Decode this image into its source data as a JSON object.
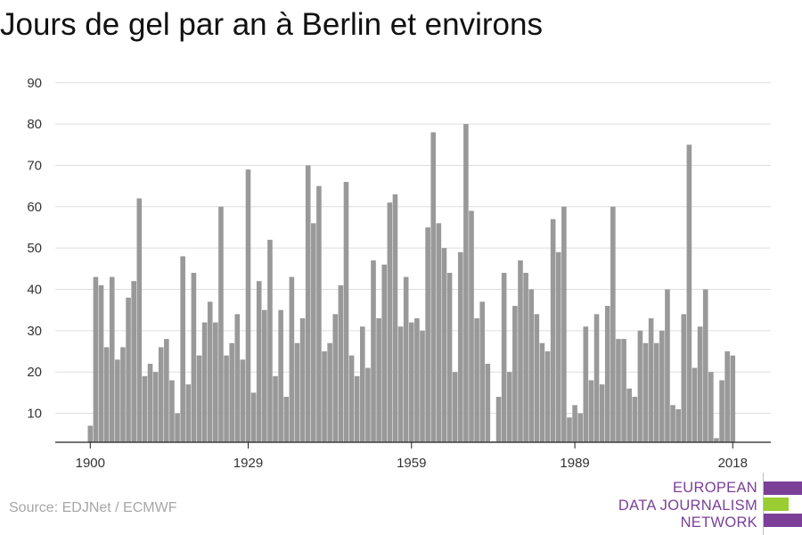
{
  "title": "Jours de gel par an à Berlin et environs",
  "source": "Source: EDJNet / ECMWF",
  "logo": {
    "lines": [
      "EUROPEAN",
      "DATA JOURNALISM",
      "NETWORK"
    ],
    "colors": {
      "purple": "#7b3f98",
      "green": "#9acd32"
    }
  },
  "chart_data": {
    "type": "bar",
    "title": "Jours de gel par an à Berlin et environs",
    "xlabel": "",
    "ylabel": "",
    "ylim": [
      3,
      90
    ],
    "yticks": [
      10,
      20,
      30,
      40,
      50,
      60,
      70,
      80,
      90
    ],
    "xticks": [
      1900,
      1929,
      1959,
      1989,
      2018
    ],
    "grid": true,
    "bar_color": "#999999",
    "x": [
      1900,
      1901,
      1902,
      1903,
      1904,
      1905,
      1906,
      1907,
      1908,
      1909,
      1910,
      1911,
      1912,
      1913,
      1914,
      1915,
      1916,
      1917,
      1918,
      1919,
      1920,
      1921,
      1922,
      1923,
      1924,
      1925,
      1926,
      1927,
      1928,
      1929,
      1930,
      1931,
      1932,
      1933,
      1934,
      1935,
      1936,
      1937,
      1938,
      1939,
      1940,
      1941,
      1942,
      1943,
      1944,
      1945,
      1946,
      1947,
      1948,
      1949,
      1950,
      1951,
      1952,
      1953,
      1954,
      1955,
      1956,
      1957,
      1958,
      1959,
      1960,
      1961,
      1962,
      1963,
      1964,
      1965,
      1966,
      1967,
      1968,
      1969,
      1970,
      1971,
      1972,
      1973,
      1974,
      1975,
      1976,
      1977,
      1978,
      1979,
      1980,
      1981,
      1982,
      1983,
      1984,
      1985,
      1986,
      1987,
      1988,
      1989,
      1990,
      1991,
      1992,
      1993,
      1994,
      1995,
      1996,
      1997,
      1998,
      1999,
      2000,
      2001,
      2002,
      2003,
      2004,
      2005,
      2006,
      2007,
      2008,
      2009,
      2010,
      2011,
      2012,
      2013,
      2014,
      2015,
      2016,
      2017,
      2018
    ],
    "values": [
      7,
      43,
      41,
      26,
      43,
      23,
      26,
      38,
      42,
      62,
      19,
      22,
      20,
      26,
      28,
      18,
      10,
      48,
      17,
      44,
      24,
      32,
      37,
      32,
      60,
      24,
      27,
      34,
      23,
      69,
      15,
      42,
      35,
      52,
      19,
      35,
      14,
      43,
      27,
      33,
      70,
      56,
      65,
      25,
      27,
      34,
      41,
      66,
      24,
      19,
      31,
      21,
      47,
      33,
      46,
      61,
      63,
      31,
      43,
      32,
      33,
      30,
      55,
      78,
      56,
      50,
      44,
      20,
      49,
      80,
      59,
      33,
      37,
      22,
      3,
      14,
      44,
      20,
      36,
      47,
      44,
      40,
      34,
      27,
      25,
      57,
      49,
      60,
      9,
      12,
      10,
      31,
      18,
      34,
      17,
      36,
      60,
      28,
      28,
      16,
      14,
      30,
      27,
      33,
      27,
      30,
      40,
      12,
      11,
      34,
      75,
      21,
      31,
      40,
      20,
      4,
      18,
      25,
      24
    ]
  }
}
